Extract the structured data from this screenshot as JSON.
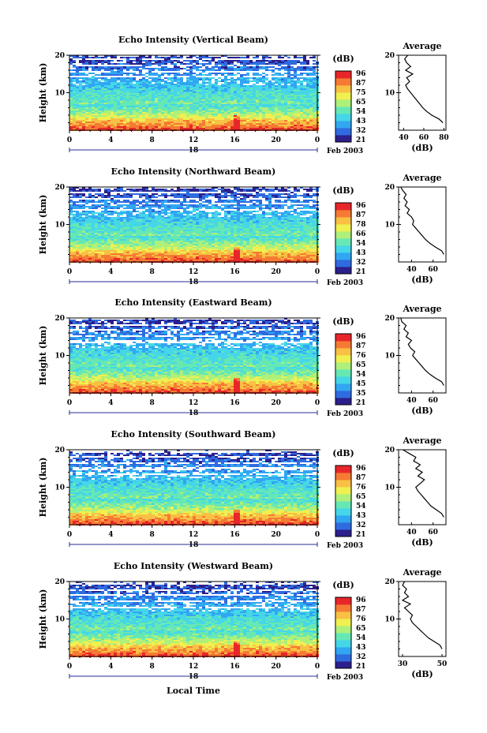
{
  "figure": {
    "xlabel": "Local Time"
  },
  "chart_data": [
    {
      "type": "heatmap",
      "title": "Echo Intensity (Vertical Beam)",
      "ylabel": "Height (km)",
      "y_ticks": [
        "20",
        "10"
      ],
      "x_ticks": [
        "0",
        "4",
        "8",
        "12",
        "16",
        "20",
        "0"
      ],
      "date_day": "18",
      "date_month": "Feb 2003",
      "colorbar_label": "(dB)",
      "colorbar_ticks": [
        "96",
        "87",
        "75",
        "65",
        "54",
        "43",
        "32",
        "21"
      ],
      "palette": [
        "#2c1f8c",
        "#2f6be0",
        "#31a6f2",
        "#45d6e8",
        "#66e8b4",
        "#aef07a",
        "#f0f050",
        "#f8c044",
        "#f67a33",
        "#e8262a"
      ],
      "profile": {
        "title": "Average",
        "xlabel": "(dB)",
        "x_ticks": [
          "40",
          "60",
          "80"
        ],
        "xlim": [
          35,
          82
        ],
        "y_ticks": [
          "20",
          "10"
        ],
        "y_km": [
          2,
          3,
          4,
          5,
          6,
          7,
          8,
          9,
          10,
          11,
          12,
          13,
          14,
          15,
          16,
          17,
          18,
          19,
          20
        ],
        "db": [
          79,
          75,
          68,
          63,
          59,
          56,
          53,
          50,
          47,
          44,
          42,
          46,
          43,
          49,
          42,
          47,
          43,
          41,
          44
        ]
      }
    },
    {
      "type": "heatmap",
      "title": "Echo Intensity (Northward Beam)",
      "ylabel": "Height (km)",
      "y_ticks": [
        "20",
        "10"
      ],
      "x_ticks": [
        "0",
        "4",
        "8",
        "12",
        "16",
        "20",
        "0"
      ],
      "date_day": "18",
      "date_month": "Feb 2003",
      "colorbar_label": "(dB)",
      "colorbar_ticks": [
        "96",
        "87",
        "78",
        "66",
        "54",
        "43",
        "32",
        "21"
      ],
      "palette": [
        "#2c1f8c",
        "#2f6be0",
        "#31a6f2",
        "#45d6e8",
        "#66e8b4",
        "#aef07a",
        "#f0f050",
        "#f8c044",
        "#f67a33",
        "#e8262a"
      ],
      "profile": {
        "title": "Average",
        "xlabel": "(dB)",
        "x_ticks": [
          "40",
          "60"
        ],
        "xlim": [
          28,
          72
        ],
        "y_ticks": [
          "20",
          "10"
        ],
        "y_km": [
          2,
          3,
          4,
          5,
          6,
          7,
          8,
          9,
          10,
          11,
          12,
          13,
          14,
          15,
          16,
          17,
          18,
          19,
          20
        ],
        "db": [
          70,
          68,
          62,
          57,
          53,
          50,
          47,
          44,
          41,
          42,
          40,
          36,
          38,
          34,
          36,
          33,
          35,
          32,
          30
        ]
      }
    },
    {
      "type": "heatmap",
      "title": "Echo Intensity (Eastward Beam)",
      "ylabel": "Height (km)",
      "y_ticks": [
        "20",
        "10"
      ],
      "x_ticks": [
        "0",
        "4",
        "8",
        "12",
        "16",
        "20",
        "0"
      ],
      "date_day": "18",
      "date_month": "Feb 2003",
      "colorbar_label": "(dB)",
      "colorbar_ticks": [
        "96",
        "87",
        "76",
        "65",
        "54",
        "45",
        "35",
        "21"
      ],
      "palette": [
        "#2c1f8c",
        "#2f6be0",
        "#31a6f2",
        "#45d6e8",
        "#66e8b4",
        "#aef07a",
        "#f0f050",
        "#f8c044",
        "#f67a33",
        "#e8262a"
      ],
      "profile": {
        "title": "Average",
        "xlabel": "(dB)",
        "x_ticks": [
          "40",
          "60"
        ],
        "xlim": [
          28,
          72
        ],
        "y_ticks": [
          "20",
          "10"
        ],
        "y_km": [
          2,
          3,
          4,
          5,
          6,
          7,
          8,
          9,
          10,
          11,
          12,
          13,
          14,
          15,
          16,
          17,
          18,
          19,
          20
        ],
        "db": [
          70,
          68,
          62,
          57,
          53,
          50,
          47,
          44,
          41,
          43,
          39,
          37,
          40,
          35,
          37,
          33,
          35,
          31,
          30
        ]
      }
    },
    {
      "type": "heatmap",
      "title": "Echo Intensity (Southward Beam)",
      "ylabel": "Height (km)",
      "y_ticks": [
        "20",
        "10"
      ],
      "x_ticks": [
        "0",
        "4",
        "8",
        "12",
        "16",
        "20",
        "0"
      ],
      "date_day": "18",
      "date_month": "Feb 2003",
      "colorbar_label": "(dB)",
      "colorbar_ticks": [
        "96",
        "87",
        "76",
        "65",
        "54",
        "43",
        "32",
        "21"
      ],
      "palette": [
        "#2c1f8c",
        "#2f6be0",
        "#31a6f2",
        "#45d6e8",
        "#66e8b4",
        "#aef07a",
        "#f0f050",
        "#f8c044",
        "#f67a33",
        "#e8262a"
      ],
      "profile": {
        "title": "Average",
        "xlabel": "(dB)",
        "x_ticks": [
          "40",
          "60"
        ],
        "xlim": [
          28,
          72
        ],
        "y_ticks": [
          "20",
          "10"
        ],
        "y_km": [
          2,
          3,
          4,
          5,
          6,
          7,
          8,
          9,
          10,
          11,
          12,
          13,
          14,
          15,
          16,
          17,
          18,
          19,
          20
        ],
        "db": [
          70,
          68,
          63,
          58,
          55,
          52,
          49,
          46,
          44,
          48,
          52,
          46,
          50,
          44,
          48,
          42,
          44,
          38,
          32
        ]
      }
    },
    {
      "type": "heatmap",
      "title": "Echo Intensity (Westward Beam)",
      "ylabel": "Height (km)",
      "y_ticks": [
        "20",
        "10"
      ],
      "x_ticks": [
        "0",
        "4",
        "8",
        "12",
        "16",
        "20",
        "0"
      ],
      "date_day": "18",
      "date_month": "Feb 2003",
      "colorbar_label": "(dB)",
      "colorbar_ticks": [
        "96",
        "87",
        "76",
        "65",
        "54",
        "43",
        "32",
        "21"
      ],
      "palette": [
        "#2c1f8c",
        "#2f6be0",
        "#31a6f2",
        "#45d6e8",
        "#66e8b4",
        "#aef07a",
        "#f0f050",
        "#f8c044",
        "#f67a33",
        "#e8262a"
      ],
      "profile": {
        "title": "Average",
        "xlabel": "(dB)",
        "x_ticks": [
          "30",
          "50"
        ],
        "xlim": [
          28,
          52
        ],
        "y_ticks": [
          "20",
          "10"
        ],
        "y_km": [
          2,
          3,
          4,
          5,
          6,
          7,
          8,
          9,
          10,
          11,
          12,
          13,
          14,
          15,
          16,
          17,
          18,
          19,
          20
        ],
        "db": [
          50,
          49,
          46,
          43,
          41,
          39,
          37,
          35,
          34,
          35,
          33,
          31,
          34,
          30,
          33,
          31,
          32,
          30,
          31
        ]
      }
    }
  ]
}
